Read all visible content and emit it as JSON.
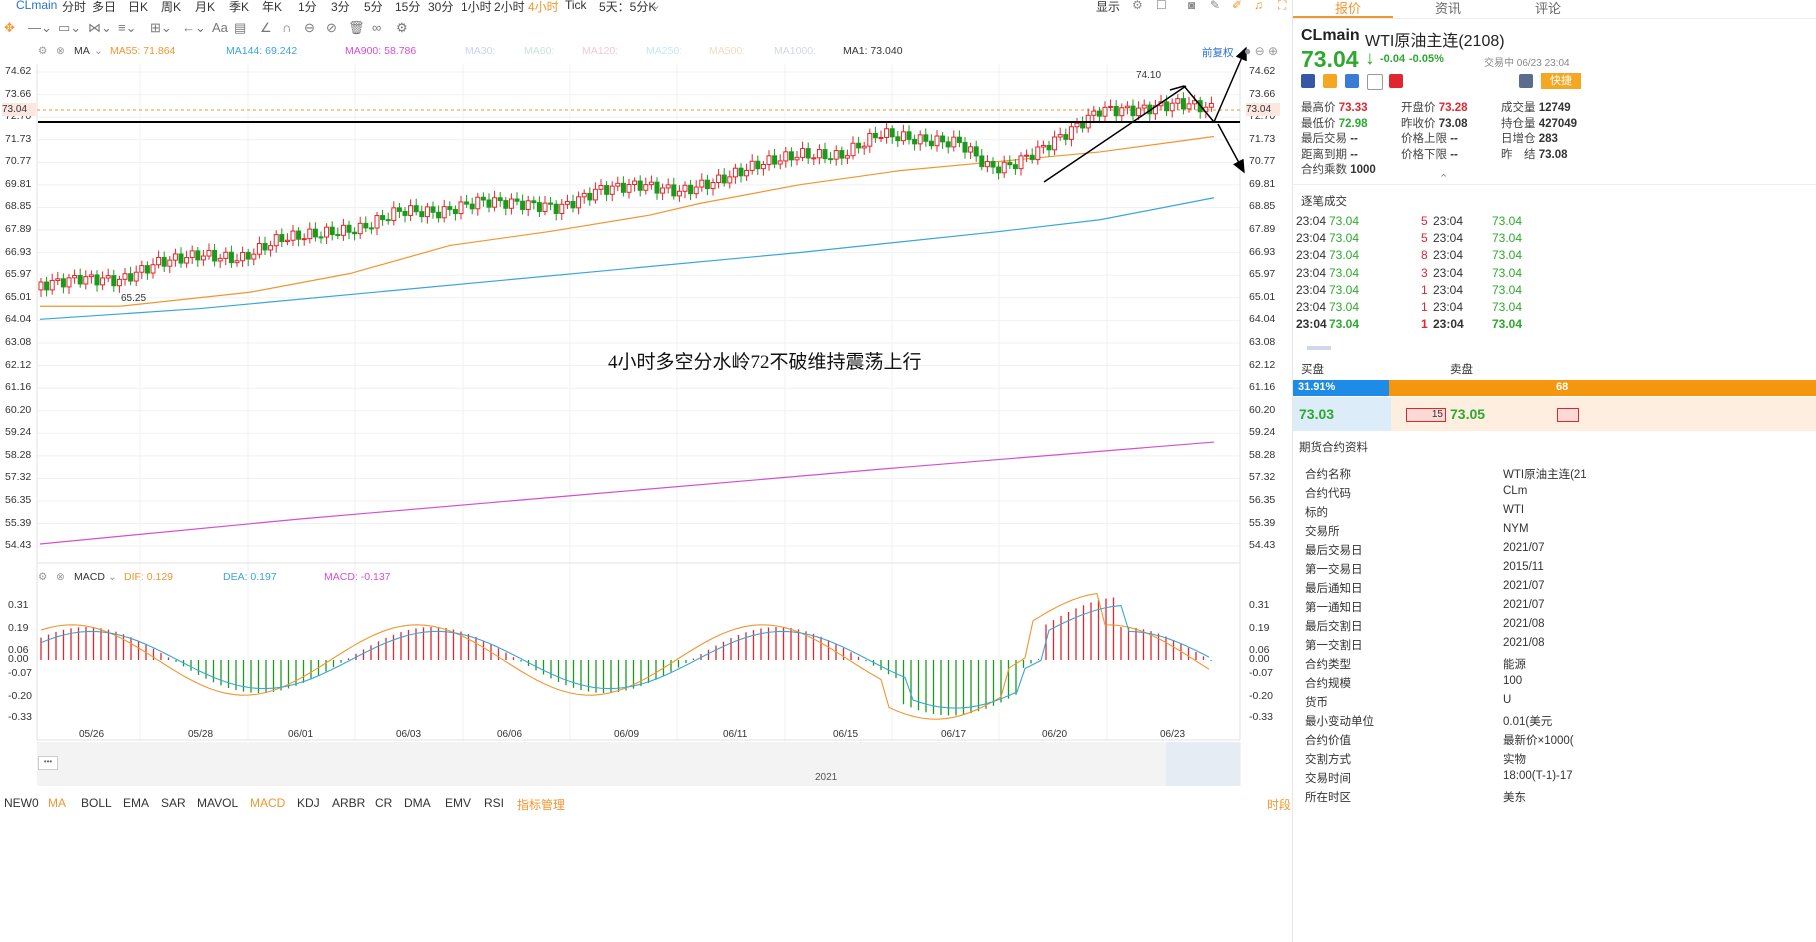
{
  "topbar": {
    "symbol": "CLmain",
    "periods": [
      "分时",
      "多日",
      "日K",
      "周K",
      "月K",
      "季K",
      "年K",
      "1分",
      "3分",
      "5分",
      "15分",
      "30分",
      "1小时",
      "2小时",
      "4小时",
      "Tick",
      "5天：5分K"
    ],
    "active_period": "4小时",
    "display": "显示"
  },
  "ma_legend": {
    "label": "MA",
    "ma55": "MA55: 71.864",
    "ma144": "MA144: 69.242",
    "ma900": "MA900: 58.786",
    "ma30": "MA30:",
    "ma60": "MA60:",
    "ma120": "MA120:",
    "ma250": "MA250:",
    "ma500": "MA500:",
    "ma1000": "MA1000:",
    "ma1": "MA1: 73.040",
    "restore": "前复权",
    "colors": {
      "ma55": "#f0962f",
      "ma144": "#3aa5d7",
      "ma900": "#d44fd1"
    }
  },
  "price_axis": [
    "74.62",
    "73.66",
    "72.70",
    "71.73",
    "70.77",
    "69.81",
    "68.85",
    "67.89",
    "66.93",
    "65.97",
    "65.01",
    "64.04",
    "63.08",
    "62.12",
    "61.16",
    "60.20",
    "59.24",
    "58.28",
    "57.32",
    "56.35",
    "55.39",
    "54.43"
  ],
  "current_price_tag": "73.04",
  "annotations": {
    "high": "74.10",
    "low": "65.25",
    "note": "4小时多空分水岭72不破维持震荡上行"
  },
  "macd_legend": {
    "label": "MACD",
    "dif": "DIF: 0.129",
    "dea": "DEA: 0.197",
    "macd": "MACD: -0.137"
  },
  "macd_axis": [
    "0.31",
    "0.19",
    "0.06",
    "0.00",
    "-0.07",
    "-0.20",
    "-0.33"
  ],
  "dates": [
    "05/26",
    "05/28",
    "06/01",
    "06/03",
    "06/06",
    "06/09",
    "06/11",
    "06/15",
    "06/17",
    "06/20",
    "06/23"
  ],
  "year": "2021",
  "indicators": [
    "NEW0",
    "MA",
    "BOLL",
    "EMA",
    "SAR",
    "MAVOL",
    "MACD",
    "KDJ",
    "ARBR",
    "CR",
    "DMA",
    "EMV",
    "RSI",
    "指标管理"
  ],
  "bottom_right": "时段",
  "quote": {
    "tabs": [
      "报价",
      "资讯",
      "评论"
    ],
    "code": "CLmain",
    "name": "WTI原油主连(2108)",
    "price": "73.04",
    "arrow": "↓",
    "change": "-0.04",
    "change_pct": "-0.05%",
    "trading_status": "交易中 06/23 23:04",
    "quick_trade": "快捷",
    "stats": [
      {
        "label": "最高价",
        "value": "73.33",
        "cls": "red"
      },
      {
        "label": "开盘价",
        "value": "73.28",
        "cls": "red"
      },
      {
        "label": "成交量",
        "value": "12749",
        "cls": ""
      },
      {
        "label": "最低价",
        "value": "72.98",
        "cls": "green"
      },
      {
        "label": "昨收价",
        "value": "73.08",
        "cls": ""
      },
      {
        "label": "持仓量",
        "value": "427049",
        "cls": ""
      },
      {
        "label": "最后交易",
        "value": "--",
        "cls": ""
      },
      {
        "label": "价格上限",
        "value": "--",
        "cls": ""
      },
      {
        "label": "日增仓",
        "value": "283",
        "cls": ""
      },
      {
        "label": "距离到期",
        "value": "--",
        "cls": ""
      },
      {
        "label": "价格下限",
        "value": "--",
        "cls": ""
      },
      {
        "label": "昨　结",
        "value": "73.08",
        "cls": ""
      },
      {
        "label": "合约乘数",
        "value": "1000",
        "cls": ""
      }
    ]
  },
  "trades": {
    "title": "逐笔成交",
    "rows": [
      {
        "t1": "23:04",
        "p1": "73.04",
        "v": "5",
        "t2": "23:04",
        "p2": "73.04"
      },
      {
        "t1": "23:04",
        "p1": "73.04",
        "v": "5",
        "t2": "23:04",
        "p2": "73.04"
      },
      {
        "t1": "23:04",
        "p1": "73.04",
        "v": "8",
        "t2": "23:04",
        "p2": "73.04"
      },
      {
        "t1": "23:04",
        "p1": "73.04",
        "v": "3",
        "t2": "23:04",
        "p2": "73.04"
      },
      {
        "t1": "23:04",
        "p1": "73.04",
        "v": "1",
        "t2": "23:04",
        "p2": "73.04"
      },
      {
        "t1": "23:04",
        "p1": "73.04",
        "v": "1",
        "t2": "23:04",
        "p2": "73.04"
      },
      {
        "t1": "23:04",
        "p1": "73.04",
        "v": "1",
        "t2": "23:04",
        "p2": "73.04"
      }
    ]
  },
  "orderbook": {
    "buy_label": "买盘",
    "sell_label": "卖盘",
    "buy_pct": "31.91%",
    "buy_fraction": 0.3191,
    "sell_pct": "68",
    "bid": "73.03",
    "bid_vol": "15",
    "ask": "73.05"
  },
  "spec": {
    "title": "期货合约资料",
    "rows": [
      {
        "k": "合约名称",
        "v": "WTI原油主连(21"
      },
      {
        "k": "合约代码",
        "v": "CLm"
      },
      {
        "k": "标的",
        "v": "WTI"
      },
      {
        "k": "交易所",
        "v": "NYM"
      },
      {
        "k": "最后交易日",
        "v": "2021/07"
      },
      {
        "k": "第一交易日",
        "v": "2015/11"
      },
      {
        "k": "最后通知日",
        "v": "2021/07"
      },
      {
        "k": "第一通知日",
        "v": "2021/07"
      },
      {
        "k": "最后交割日",
        "v": "2021/08"
      },
      {
        "k": "第一交割日",
        "v": "2021/08"
      },
      {
        "k": "合约类型",
        "v": "能源"
      },
      {
        "k": "合约规模",
        "v": "100"
      },
      {
        "k": "货币",
        "v": "U"
      },
      {
        "k": "最小变动单位",
        "v": "0.01(美元"
      },
      {
        "k": "合约价值",
        "v": "最新价×1000("
      },
      {
        "k": "交割方式",
        "v": "实物"
      },
      {
        "k": "交易时间",
        "v": "18:00(T-1)-17"
      },
      {
        "k": "所在时区",
        "v": "美东"
      }
    ]
  }
}
